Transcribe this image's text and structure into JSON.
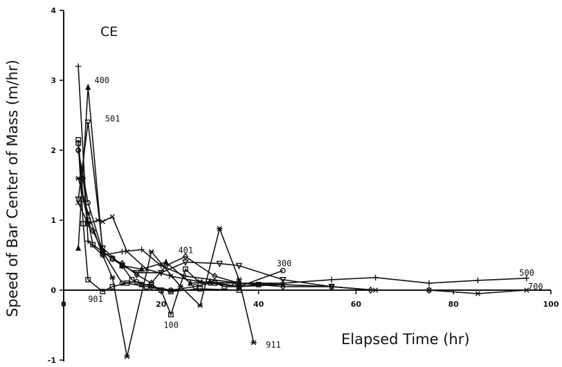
{
  "chart_data": {
    "type": "line",
    "title": "CE",
    "xlabel": "Elapsed Time  (hr)",
    "ylabel": "Speed of Bar Center of Mass  (m/hr)",
    "xlim": [
      0,
      100
    ],
    "ylim": [
      -1,
      4
    ],
    "x_ticks": [
      0,
      20,
      40,
      60,
      80,
      100
    ],
    "y_ticks": [
      -1,
      0,
      1,
      2,
      3,
      4
    ],
    "grid": false,
    "legend": "none",
    "series": [
      {
        "name": "100",
        "marker": "square",
        "label_at": [
          20.5,
          -0.5
        ],
        "points": [
          [
            3,
            2.15
          ],
          [
            4,
            1.3
          ],
          [
            5,
            1.0
          ],
          [
            6,
            0.65
          ],
          [
            8,
            0.55
          ],
          [
            10,
            0.45
          ],
          [
            12,
            0.35
          ],
          [
            14,
            0.15
          ],
          [
            16,
            0.08
          ],
          [
            18,
            0.08
          ],
          [
            20,
            0.0
          ],
          [
            22,
            -0.35
          ],
          [
            25,
            0.3
          ],
          [
            28,
            0.1
          ],
          [
            31,
            0.1
          ],
          [
            33,
            0.05
          ],
          [
            36,
            0.05
          ],
          [
            40,
            0.08
          ]
        ]
      },
      {
        "name": "300",
        "marker": "circle",
        "label_at": [
          43.7,
          0.38
        ],
        "points": [
          [
            3,
            2.0
          ],
          [
            5,
            1.25
          ],
          [
            8,
            0.55
          ],
          [
            12,
            0.1
          ],
          [
            15,
            0.12
          ],
          [
            18,
            0.05
          ],
          [
            22,
            0.0
          ],
          [
            27,
            0.05
          ],
          [
            30,
            0.1
          ],
          [
            36,
            0.05
          ],
          [
            45,
            0.28
          ]
        ]
      },
      {
        "name": "400",
        "marker": "triangle",
        "label_at": [
          6.3,
          3.0
        ],
        "points": [
          [
            3,
            0.6
          ],
          [
            5,
            2.9
          ],
          [
            8,
            0.55
          ],
          [
            12,
            0.35
          ],
          [
            16,
            0.3
          ],
          [
            21,
            0.4
          ],
          [
            26,
            0.1
          ],
          [
            30,
            0.12
          ],
          [
            36,
            0.05
          ],
          [
            45,
            0.08
          ]
        ]
      },
      {
        "name": "401",
        "marker": "diamond",
        "label_at": [
          23.5,
          0.57
        ],
        "points": [
          [
            3,
            2.0
          ],
          [
            4,
            1.6
          ],
          [
            5,
            0.95
          ],
          [
            6,
            0.85
          ],
          [
            8,
            0.55
          ],
          [
            10,
            0.45
          ],
          [
            12,
            0.38
          ],
          [
            15,
            0.22
          ],
          [
            18,
            0.1
          ],
          [
            21,
            0.35
          ],
          [
            25,
            0.48
          ],
          [
            31,
            0.2
          ],
          [
            36,
            0.1
          ],
          [
            45,
            0.05
          ],
          [
            55,
            0.05
          ],
          [
            63,
            0.0
          ],
          [
            75,
            0.0
          ]
        ]
      },
      {
        "name": "500",
        "marker": "plus",
        "label_at": [
          93.5,
          0.25
        ],
        "points": [
          [
            3,
            3.2
          ],
          [
            5,
            0.7
          ],
          [
            8,
            0.5
          ],
          [
            12,
            0.55
          ],
          [
            16,
            0.58
          ],
          [
            20,
            0.35
          ],
          [
            25,
            0.2
          ],
          [
            36,
            0.1
          ],
          [
            45,
            0.1
          ],
          [
            55,
            0.15
          ],
          [
            64,
            0.18
          ],
          [
            75,
            0.1
          ],
          [
            85,
            0.14
          ],
          [
            95,
            0.17
          ]
        ]
      },
      {
        "name": "501",
        "marker": "triangle-down",
        "label_at": [
          8.5,
          2.45
        ],
        "points": [
          [
            3,
            1.3
          ],
          [
            5,
            2.4
          ],
          [
            8,
            0.6
          ],
          [
            12,
            0.35
          ],
          [
            15,
            0.25
          ],
          [
            20,
            0.25
          ],
          [
            25,
            0.4
          ],
          [
            32,
            0.38
          ],
          [
            36,
            0.35
          ],
          [
            45,
            0.15
          ],
          [
            55,
            0.05
          ]
        ]
      },
      {
        "name": "700",
        "marker": "x",
        "label_at": [
          95.3,
          0.05
        ],
        "points": [
          [
            3,
            1.25
          ],
          [
            5,
            0.95
          ],
          [
            7,
            1.0
          ],
          [
            8,
            0.98
          ],
          [
            10,
            1.05
          ],
          [
            13,
            0.55
          ],
          [
            17,
            0.3
          ],
          [
            22,
            0.2
          ],
          [
            28,
            0.12
          ],
          [
            35,
            0.1
          ],
          [
            45,
            0.08
          ],
          [
            55,
            0.05
          ],
          [
            64,
            0.0
          ],
          [
            75,
            0.0
          ],
          [
            85,
            -0.05
          ],
          [
            95,
            0.0
          ]
        ]
      },
      {
        "name": "901",
        "marker": "square",
        "label_at": [
          5.0,
          -0.13
        ],
        "points": [
          [
            3,
            2.1
          ],
          [
            4,
            0.95
          ],
          [
            5,
            0.15
          ],
          [
            8,
            -0.02
          ],
          [
            10,
            0.05
          ],
          [
            13,
            0.1
          ],
          [
            17,
            0.05
          ],
          [
            22,
            -0.02
          ],
          [
            28,
            0.02
          ],
          [
            36,
            0.0
          ]
        ]
      },
      {
        "name": "911",
        "marker": "star",
        "label_at": [
          41.5,
          -0.78
        ],
        "points": [
          [
            3,
            1.6
          ],
          [
            5,
            1.1
          ],
          [
            8,
            0.5
          ],
          [
            10,
            0.18
          ],
          [
            13,
            -0.95
          ],
          [
            18,
            0.55
          ],
          [
            24,
            0.05
          ],
          [
            28,
            -0.22
          ],
          [
            32,
            0.88
          ],
          [
            36,
            0.15
          ],
          [
            39,
            -0.75
          ]
        ]
      }
    ]
  }
}
